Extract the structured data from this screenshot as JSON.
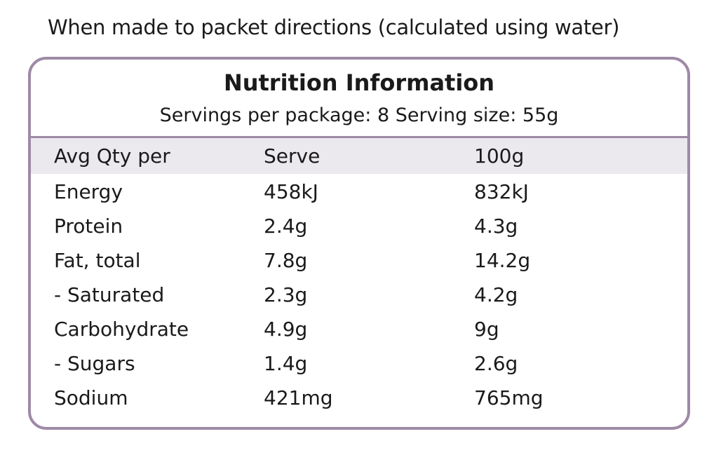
{
  "caption": "When made to packet directions (calculated using water)",
  "panel": {
    "title": "Nutrition Information",
    "subtitle": "Servings per package: 8 Serving size: 55g",
    "header": [
      "Avg Qty per",
      "Serve",
      "100g"
    ],
    "rows": [
      [
        "Energy",
        "458kJ",
        "832kJ"
      ],
      [
        "Protein",
        "2.4g",
        "4.3g"
      ],
      [
        "Fat, total",
        "7.8g",
        "14.2g"
      ],
      [
        "- Saturated",
        "2.3g",
        "4.2g"
      ],
      [
        "Carbohydrate",
        "4.9g",
        "9g"
      ],
      [
        "- Sugars",
        "1.4g",
        "2.6g"
      ],
      [
        "Sodium",
        "421mg",
        "765mg"
      ]
    ]
  },
  "colors": {
    "border": "#9e8aa6",
    "header_bg": "#ebe8ee"
  }
}
